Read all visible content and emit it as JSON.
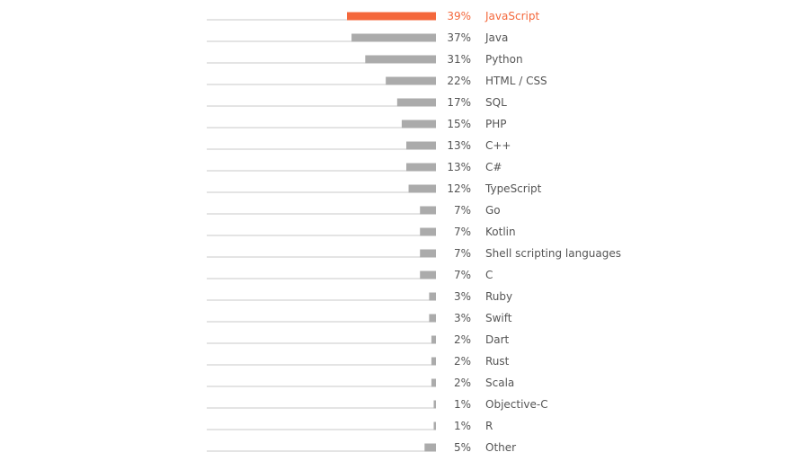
{
  "chart_data": {
    "type": "bar",
    "orientation": "horizontal",
    "value_suffix": "%",
    "highlight_color": "#f4683c",
    "bar_color": "#ababab",
    "baseline_color": "#c9c9c9",
    "xlim": [
      0,
      39
    ],
    "categories": [
      "JavaScript",
      "Java",
      "Python",
      "HTML / CSS",
      "SQL",
      "PHP",
      "C++",
      "C#",
      "TypeScript",
      "Go",
      "Kotlin",
      "Shell scripting languages",
      "C",
      "Ruby",
      "Swift",
      "Dart",
      "Rust",
      "Scala",
      "Objective-C",
      "R",
      "Other"
    ],
    "values": [
      39,
      37,
      31,
      22,
      17,
      15,
      13,
      13,
      12,
      7,
      7,
      7,
      7,
      3,
      3,
      2,
      2,
      2,
      1,
      1,
      5
    ],
    "highlight_index": 0
  }
}
